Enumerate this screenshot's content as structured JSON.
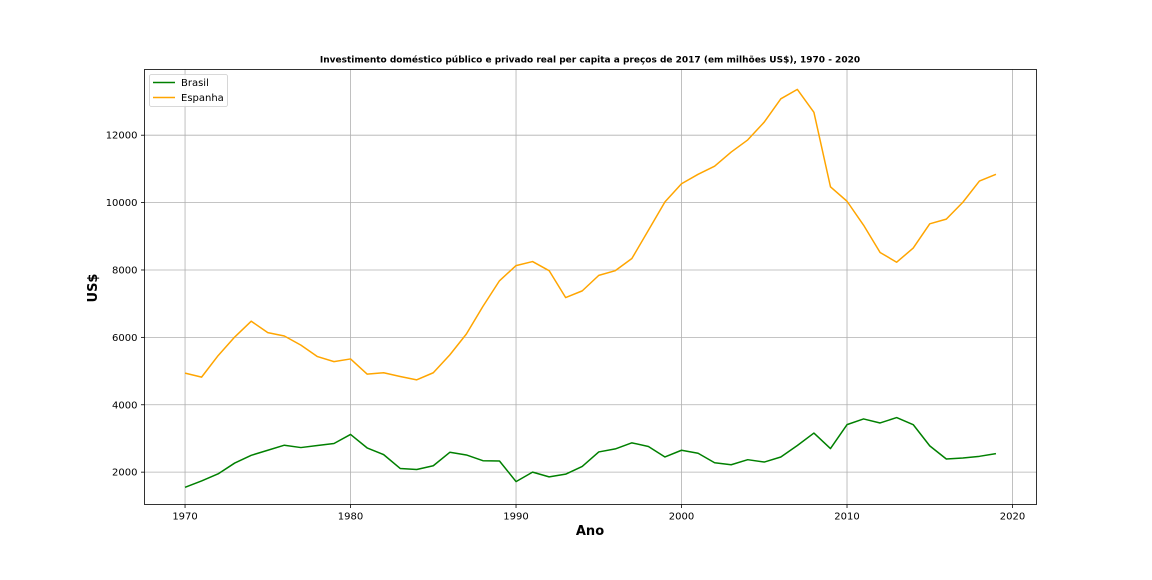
{
  "chart_data": {
    "type": "line",
    "title": "Investimento doméstico público e privado real per capita a preços de 2017 (em milhões US$), 1970 - 2020",
    "xlabel": "Ano",
    "ylabel": "US$",
    "xlim": [
      1967.55,
      2021.45
    ],
    "ylim": [
      1040,
      13950
    ],
    "xticks": [
      1970,
      1980,
      1990,
      2000,
      2010,
      2020
    ],
    "yticks": [
      2000,
      4000,
      6000,
      8000,
      10000,
      12000
    ],
    "grid": true,
    "legend_position": "upper-left",
    "x": [
      1970,
      1971,
      1972,
      1973,
      1974,
      1975,
      1976,
      1977,
      1978,
      1979,
      1980,
      1981,
      1982,
      1983,
      1984,
      1985,
      1986,
      1987,
      1988,
      1989,
      1990,
      1991,
      1992,
      1993,
      1994,
      1995,
      1996,
      1997,
      1998,
      1999,
      2000,
      2001,
      2002,
      2003,
      2004,
      2005,
      2006,
      2007,
      2008,
      2009,
      2010,
      2011,
      2012,
      2013,
      2014,
      2015,
      2016,
      2017,
      2018,
      2019
    ],
    "series": [
      {
        "name": "Brasil",
        "color": "#008000",
        "values": [
          1550,
          1740,
          1950,
          2270,
          2500,
          2650,
          2800,
          2730,
          2790,
          2850,
          3120,
          2720,
          2520,
          2110,
          2080,
          2190,
          2590,
          2510,
          2340,
          2330,
          1720,
          2000,
          1860,
          1940,
          2170,
          2600,
          2690,
          2870,
          2760,
          2450,
          2650,
          2560,
          2280,
          2220,
          2370,
          2300,
          2450,
          2790,
          3160,
          2700,
          3410,
          3580,
          3460,
          3620,
          3410,
          2780,
          2390,
          2420,
          2470,
          2550
        ]
      },
      {
        "name": "Espanha",
        "color": "#FFA500",
        "values": [
          4940,
          4820,
          5460,
          6010,
          6480,
          6140,
          6040,
          5770,
          5430,
          5280,
          5360,
          4910,
          4950,
          4840,
          4740,
          4950,
          5480,
          6100,
          6920,
          7680,
          8130,
          8250,
          7980,
          7180,
          7380,
          7840,
          7980,
          8340,
          9180,
          10020,
          10560,
          10840,
          11080,
          11500,
          11860,
          12390,
          13080,
          13360,
          12680,
          10470,
          10040,
          9330,
          8520,
          8230,
          8650,
          9370,
          9510,
          10010,
          10640,
          10840
        ]
      }
    ]
  }
}
